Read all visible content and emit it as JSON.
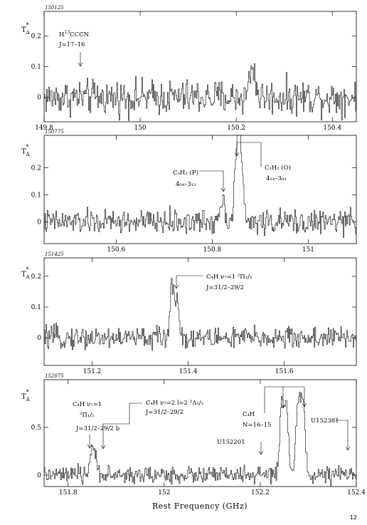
{
  "page_number": "12",
  "chart_data": [
    {
      "type": "line",
      "panel_id": "150125",
      "ylabel": "T_A*",
      "xlim": [
        149.8,
        150.45
      ],
      "ylim": [
        -0.08,
        0.28
      ],
      "x_ticks": [
        149.8,
        150,
        150.2,
        150.4
      ],
      "x_tick_labels": [
        "149.8",
        "150",
        "150.2",
        "150.4"
      ],
      "y_ticks": [
        0,
        0.1,
        0.2
      ],
      "y_tick_labels": [
        "0",
        "0.1",
        "0.2"
      ],
      "noise_rms": 0.028,
      "lines": [
        {
          "x": 150.233,
          "width": 0.006,
          "peak": 0.1
        }
      ],
      "annotations": [
        {
          "species": "H",
          "species_sup": "13",
          "species_rest": "CCCN",
          "transition": "J=17–16",
          "x": 149.88
        }
      ]
    },
    {
      "type": "line",
      "panel_id": "150775",
      "ylabel": "T_A*",
      "xlim": [
        150.45,
        151.1
      ],
      "ylim": [
        -0.08,
        0.32
      ],
      "x_ticks": [
        150.6,
        150.8,
        151
      ],
      "x_tick_labels": [
        "150.6",
        "150.8",
        "151"
      ],
      "y_ticks": [
        0,
        0.1,
        0.2
      ],
      "y_tick_labels": [
        "0",
        "0.1",
        "0.2"
      ],
      "noise_rms": 0.022,
      "lines": [
        {
          "x": 150.82,
          "width": 0.006,
          "peak": 0.08
        },
        {
          "x": 150.851,
          "width": 0.005,
          "peak": 0.25
        },
        {
          "x": 150.858,
          "width": 0.005,
          "peak": 0.22
        }
      ],
      "annotations": [
        {
          "species": "C₃H₂ (P)",
          "transition": "4₀₄–3₁₃",
          "x": 150.82
        },
        {
          "species": "C₃H₂ (O)",
          "transition": "4₁₄–3₀₃",
          "x": 150.851
        }
      ]
    },
    {
      "type": "line",
      "panel_id": "151425",
      "ylabel": "T_A*",
      "xlim": [
        151.1,
        151.75
      ],
      "ylim": [
        -0.09,
        0.26
      ],
      "x_ticks": [
        151.2,
        151.4,
        151.6
      ],
      "x_tick_labels": [
        "151.2",
        "151.4",
        "151.6"
      ],
      "y_ticks": [
        0,
        0.1,
        0.2
      ],
      "y_tick_labels": [
        "0",
        "0.1",
        "0.2"
      ],
      "noise_rms": 0.018,
      "lines": [
        {
          "x": 151.366,
          "width": 0.004,
          "peak": 0.17
        },
        {
          "x": 151.376,
          "width": 0.004,
          "peak": 0.13
        }
      ],
      "annotations": [
        {
          "species": "C₄H ν₇=1 ²Π₁/₂",
          "transition": "J=31/2–29/2",
          "x": 151.368
        }
      ]
    },
    {
      "type": "line",
      "panel_id": "152075",
      "ylabel": "T_A*",
      "xlabel": "Rest Frequency (GHz)",
      "xlim": [
        151.75,
        152.4
      ],
      "ylim": [
        -0.12,
        1.0
      ],
      "x_ticks": [
        151.8,
        152,
        152.2,
        152.4
      ],
      "x_tick_labels": [
        "151.8",
        "152",
        "152.2",
        "152.4"
      ],
      "y_ticks": [
        0,
        0.5
      ],
      "y_tick_labels": [
        "0",
        "0.5"
      ],
      "noise_rms": 0.045,
      "lines": [
        {
          "x": 151.848,
          "width": 0.004,
          "peak": 0.25
        },
        {
          "x": 151.858,
          "width": 0.004,
          "peak": 0.18
        },
        {
          "x": 152.245,
          "width": 0.005,
          "peak": 0.74
        },
        {
          "x": 152.255,
          "width": 0.004,
          "peak": 0.55
        },
        {
          "x": 152.279,
          "width": 0.005,
          "peak": 0.8
        },
        {
          "x": 152.289,
          "width": 0.004,
          "peak": 0.7
        }
      ],
      "annotations": [
        {
          "species": "C₄H ν₇=1",
          "extra": "²Π₁/₂",
          "transition": "J=31/2–29/2 b",
          "x": 151.852
        },
        {
          "species": "C₄H ν₇=2 l=2 ²Δ₃/₂",
          "transition": "J=31/2–29/2",
          "x": 151.868
        },
        {
          "species": "C₄H",
          "transition": "N=16–15",
          "x": 152.25
        },
        {
          "species": "U152201",
          "transition": "",
          "x": 152.201
        },
        {
          "species": "U152381",
          "transition": "",
          "x": 152.381
        }
      ]
    }
  ]
}
